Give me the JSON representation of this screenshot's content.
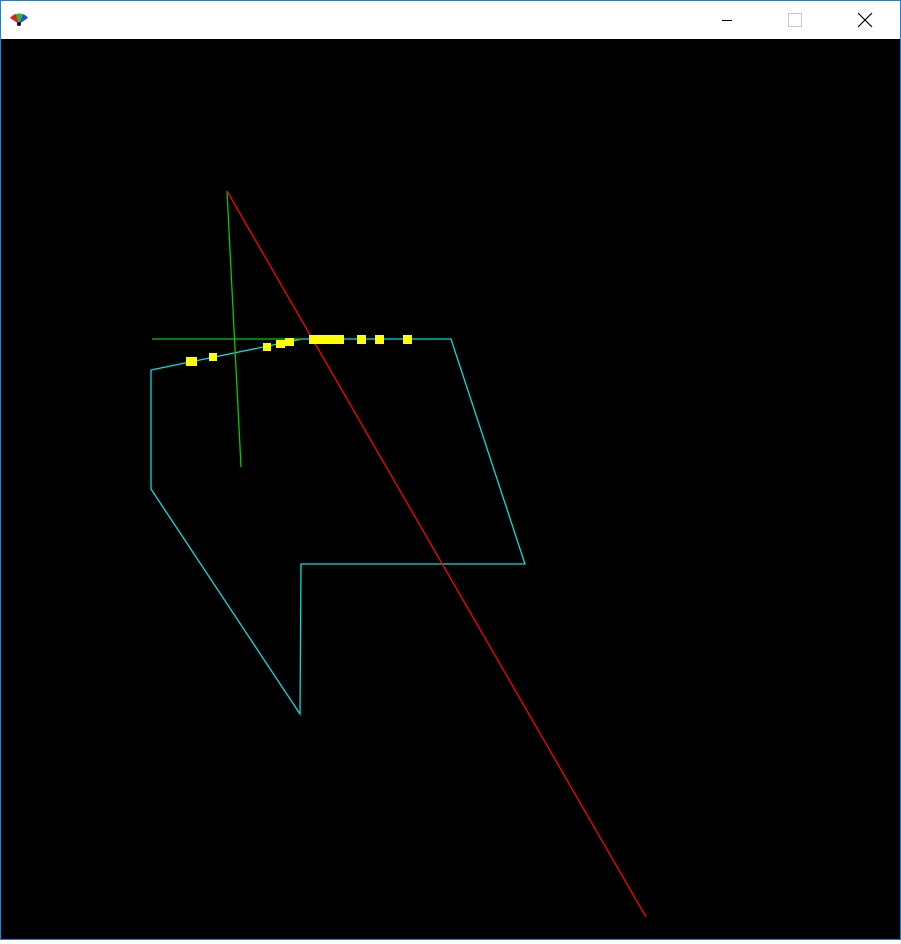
{
  "window": {
    "title": "",
    "controls": {
      "minimize_icon": "minimize-icon",
      "maximize_icon": "maximize-icon",
      "close_icon": "close-icon"
    }
  },
  "scene": {
    "background": "#000000",
    "colors": {
      "x_axis": "#ff0000",
      "y_axis": "#00cc00",
      "shape_outline": "#00e0e0",
      "markers": "#ffff00"
    }
  }
}
